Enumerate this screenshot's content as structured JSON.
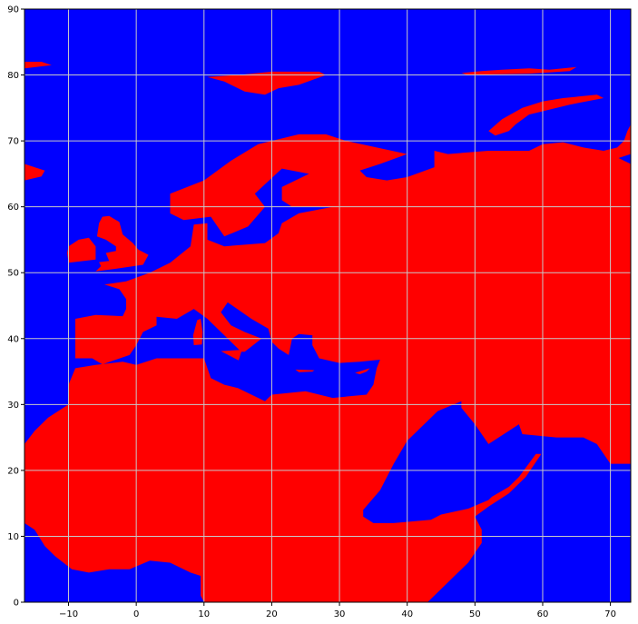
{
  "chart_data": {
    "type": "heatmap",
    "title": "",
    "xlabel": "",
    "ylabel": "",
    "xlim": [
      -16.5,
      73
    ],
    "ylim": [
      0,
      90
    ],
    "grid": true,
    "x_ticks": [
      -10,
      0,
      10,
      20,
      30,
      40,
      50,
      60,
      70
    ],
    "y_ticks": [
      0,
      10,
      20,
      30,
      40,
      50,
      60,
      70,
      80,
      90
    ],
    "colors": {
      "land": "#ff0000",
      "sea": "#0000ff",
      "grid": "#c8c8c8"
    },
    "land_regions": [
      {
        "name": "eurasia-africa",
        "points": [
          [
            -16.5,
            24
          ],
          [
            -15,
            26
          ],
          [
            -13,
            28
          ],
          [
            -10,
            30
          ],
          [
            -10,
            33
          ],
          [
            -9,
            35.5
          ],
          [
            -6,
            36
          ],
          [
            -2,
            36.5
          ],
          [
            0,
            36
          ],
          [
            3,
            37
          ],
          [
            7,
            37
          ],
          [
            10,
            37
          ],
          [
            11,
            34
          ],
          [
            13,
            33
          ],
          [
            15,
            32.5
          ],
          [
            19,
            30.5
          ],
          [
            20,
            31.5
          ],
          [
            25,
            32
          ],
          [
            29,
            31
          ],
          [
            32,
            31.3
          ],
          [
            34,
            31.5
          ],
          [
            35,
            33
          ],
          [
            35.5,
            35.5
          ],
          [
            36,
            36.8
          ],
          [
            33,
            36.5
          ],
          [
            30,
            36.3
          ],
          [
            27,
            37
          ],
          [
            26,
            39
          ],
          [
            26,
            40.5
          ],
          [
            24,
            40.7
          ],
          [
            23,
            40
          ],
          [
            22.5,
            37.5
          ],
          [
            21,
            38.5
          ],
          [
            20,
            39.5
          ],
          [
            19.5,
            41.5
          ],
          [
            17,
            43
          ],
          [
            13.5,
            45.5
          ],
          [
            12.5,
            44
          ],
          [
            14,
            42
          ],
          [
            16,
            41
          ],
          [
            18.5,
            40
          ],
          [
            16,
            38
          ],
          [
            15.5,
            38
          ],
          [
            12,
            41.5
          ],
          [
            10.5,
            43
          ],
          [
            8.5,
            44.5
          ],
          [
            6,
            43
          ],
          [
            3,
            43.3
          ],
          [
            3,
            42
          ],
          [
            1,
            41
          ],
          [
            0,
            39
          ],
          [
            -1,
            37.5
          ],
          [
            -5,
            36.1
          ],
          [
            -6.5,
            37
          ],
          [
            -9,
            37
          ],
          [
            -9,
            43
          ],
          [
            -6,
            43.6
          ],
          [
            -2,
            43.4
          ],
          [
            -1.5,
            44.5
          ],
          [
            -1.5,
            46
          ],
          [
            -2.5,
            47.5
          ],
          [
            -4.7,
            48.2
          ],
          [
            -1.5,
            48.7
          ],
          [
            2,
            50
          ],
          [
            5,
            51.5
          ],
          [
            8,
            54
          ],
          [
            8.5,
            57.3
          ],
          [
            10.5,
            57.5
          ],
          [
            10.5,
            55
          ],
          [
            13,
            54
          ],
          [
            19,
            54.5
          ],
          [
            21,
            56
          ],
          [
            21.5,
            57.5
          ],
          [
            24,
            59
          ],
          [
            29,
            60
          ],
          [
            23,
            60
          ],
          [
            21.5,
            61
          ],
          [
            21.5,
            63
          ],
          [
            25.5,
            65
          ],
          [
            21.5,
            65.8
          ],
          [
            17.5,
            62
          ],
          [
            19,
            60
          ],
          [
            16.5,
            57
          ],
          [
            13,
            55.5
          ],
          [
            11,
            58.5
          ],
          [
            7,
            58
          ],
          [
            5,
            59
          ],
          [
            5,
            62
          ],
          [
            10,
            64
          ],
          [
            14,
            67
          ],
          [
            18,
            69.5
          ],
          [
            24,
            71
          ],
          [
            28,
            71
          ],
          [
            31,
            70
          ],
          [
            40,
            68
          ],
          [
            36,
            66.5
          ],
          [
            33,
            65.5
          ],
          [
            34,
            64.5
          ],
          [
            37,
            64
          ],
          [
            40,
            64.5
          ],
          [
            44,
            66
          ],
          [
            44,
            68.5
          ],
          [
            46,
            68
          ],
          [
            52,
            68.5
          ],
          [
            58,
            68.5
          ],
          [
            60,
            69.5
          ],
          [
            63,
            69.8
          ],
          [
            66,
            69
          ],
          [
            69,
            68.5
          ],
          [
            72,
            67
          ],
          [
            73,
            66.5
          ],
          [
            73,
            21
          ],
          [
            70,
            21
          ],
          [
            68,
            24
          ],
          [
            66,
            25
          ],
          [
            62,
            25
          ],
          [
            57,
            25.5
          ],
          [
            56.5,
            27
          ],
          [
            55,
            26
          ],
          [
            52,
            24
          ],
          [
            51,
            25.5
          ],
          [
            50,
            27
          ],
          [
            48,
            29.5
          ],
          [
            48,
            30.5
          ],
          [
            44.5,
            29
          ],
          [
            40,
            24.5
          ],
          [
            38,
            21
          ],
          [
            36,
            17
          ],
          [
            33.5,
            14
          ],
          [
            33.5,
            13
          ],
          [
            35,
            12
          ],
          [
            38,
            12
          ],
          [
            43.5,
            12.5
          ],
          [
            45,
            13.3
          ],
          [
            49,
            14.2
          ],
          [
            52,
            15.5
          ],
          [
            52.5,
            16
          ],
          [
            55,
            17.5
          ],
          [
            56.5,
            19
          ],
          [
            59,
            22.5
          ],
          [
            59.8,
            22.5
          ],
          [
            57.5,
            19
          ],
          [
            55,
            16.5
          ],
          [
            52,
            14.5
          ],
          [
            50,
            13
          ],
          [
            51,
            11
          ],
          [
            51,
            9
          ],
          [
            49,
            6
          ],
          [
            46,
            3
          ],
          [
            44,
            1
          ],
          [
            43,
            0
          ],
          [
            10,
            0
          ],
          [
            9.5,
            1
          ],
          [
            9.5,
            4
          ],
          [
            8,
            4.5
          ],
          [
            5,
            6
          ],
          [
            2,
            6.3
          ],
          [
            -1,
            5
          ],
          [
            -4,
            5
          ],
          [
            -7,
            4.5
          ],
          [
            -9.5,
            5
          ],
          [
            -12,
            7
          ],
          [
            -13.5,
            8.5
          ],
          [
            -15,
            11
          ],
          [
            -16.5,
            12
          ]
        ]
      },
      {
        "name": "great-britain",
        "points": [
          [
            -6,
            50.2
          ],
          [
            -3,
            50.6
          ],
          [
            1,
            51.2
          ],
          [
            1.8,
            52.7
          ],
          [
            0.3,
            53.5
          ],
          [
            -0.5,
            54.5
          ],
          [
            -2,
            55.8
          ],
          [
            -2.5,
            57.7
          ],
          [
            -4,
            58.6
          ],
          [
            -5,
            58.5
          ],
          [
            -5.5,
            57.5
          ],
          [
            -5.8,
            55.5
          ],
          [
            -4.5,
            55
          ],
          [
            -3,
            54
          ],
          [
            -3,
            53.3
          ],
          [
            -4.5,
            53
          ],
          [
            -4,
            51.8
          ],
          [
            -5.5,
            51.6
          ],
          [
            -5.2,
            51
          ]
        ]
      },
      {
        "name": "ireland",
        "points": [
          [
            -10,
            51.5
          ],
          [
            -6,
            52
          ],
          [
            -6,
            54
          ],
          [
            -7,
            55.3
          ],
          [
            -8.5,
            55
          ],
          [
            -10,
            54
          ],
          [
            -10.2,
            53
          ]
        ]
      },
      {
        "name": "iceland",
        "points": [
          [
            -16.5,
            64
          ],
          [
            -14,
            64.6
          ],
          [
            -13.5,
            65.5
          ],
          [
            -16.5,
            66.5
          ]
        ]
      },
      {
        "name": "greenland-edge",
        "points": [
          [
            -16.5,
            81
          ],
          [
            -12.5,
            81.5
          ],
          [
            -14,
            82
          ],
          [
            -16.5,
            82
          ]
        ]
      },
      {
        "name": "svalbard",
        "points": [
          [
            10.5,
            79.7
          ],
          [
            13,
            79
          ],
          [
            16,
            77.5
          ],
          [
            19,
            77
          ],
          [
            21,
            78
          ],
          [
            24,
            78.5
          ],
          [
            28,
            80
          ],
          [
            27,
            80.5
          ],
          [
            20,
            80.5
          ],
          [
            15,
            80
          ]
        ]
      },
      {
        "name": "novaya-zemlya",
        "points": [
          [
            52,
            71.5
          ],
          [
            54,
            73.3
          ],
          [
            57,
            75
          ],
          [
            60,
            76
          ],
          [
            63,
            76.5
          ],
          [
            68,
            77
          ],
          [
            69,
            76.5
          ],
          [
            64,
            75.5
          ],
          [
            58,
            74
          ],
          [
            56,
            72.5
          ],
          [
            55,
            71.5
          ],
          [
            53,
            70.8
          ]
        ]
      },
      {
        "name": "yamal-tip",
        "points": [
          [
            69,
            68.5
          ],
          [
            71,
            69
          ],
          [
            72,
            70
          ],
          [
            72.5,
            71.5
          ],
          [
            73,
            72.5
          ],
          [
            73,
            68
          ],
          [
            70,
            67
          ]
        ]
      },
      {
        "name": "franz-josef-land",
        "points": [
          [
            48,
            80.3
          ],
          [
            51,
            80.6
          ],
          [
            54,
            80.8
          ],
          [
            58,
            81
          ],
          [
            61,
            80.8
          ],
          [
            65,
            81.2
          ],
          [
            64,
            80.6
          ],
          [
            58,
            80.2
          ],
          [
            53,
            80.1
          ],
          [
            49,
            80
          ]
        ]
      },
      {
        "name": "sicily",
        "points": [
          [
            12.5,
            38.1
          ],
          [
            15.6,
            38.3
          ],
          [
            15.1,
            36.7
          ]
        ]
      },
      {
        "name": "sardinia-corsica",
        "points": [
          [
            8.5,
            39
          ],
          [
            9.7,
            39.1
          ],
          [
            9.8,
            41
          ],
          [
            9.5,
            43
          ],
          [
            9,
            42.8
          ],
          [
            8.4,
            40.5
          ]
        ]
      },
      {
        "name": "crete",
        "points": [
          [
            23.5,
            35.3
          ],
          [
            26.3,
            35.2
          ],
          [
            26,
            35
          ],
          [
            24,
            34.9
          ]
        ]
      },
      {
        "name": "cyprus",
        "points": [
          [
            32.3,
            34.8
          ],
          [
            34.5,
            35.5
          ],
          [
            34,
            35
          ],
          [
            33,
            34.6
          ]
        ]
      }
    ]
  }
}
